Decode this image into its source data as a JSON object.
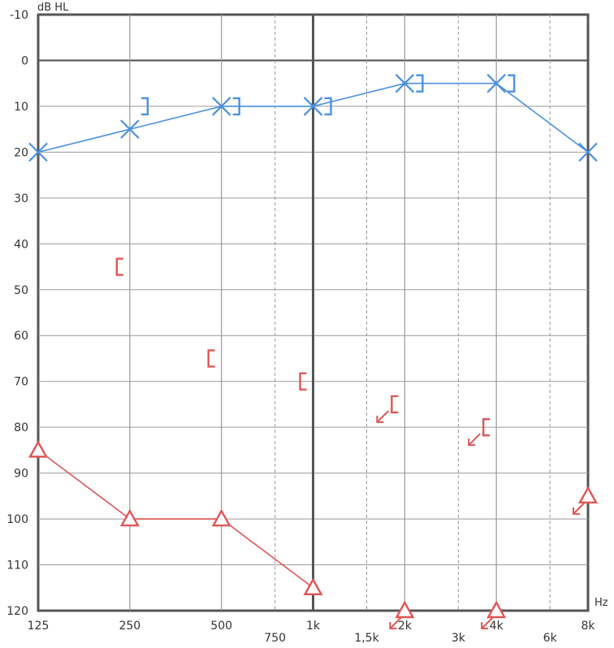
{
  "chart_data": {
    "type": "line",
    "ylabel": "dB HL",
    "xlabel": "Hz",
    "ylim": [
      -10,
      120
    ],
    "y_ticks": [
      "-10",
      "0",
      "10",
      "20",
      "30",
      "40",
      "50",
      "60",
      "70",
      "80",
      "90",
      "100",
      "110",
      "120"
    ],
    "x_ticks_main": [
      {
        "hz": 125,
        "label": "125"
      },
      {
        "hz": 250,
        "label": "250"
      },
      {
        "hz": 500,
        "label": "500"
      },
      {
        "hz": 1000,
        "label": "1k"
      },
      {
        "hz": 2000,
        "label": "2k"
      },
      {
        "hz": 4000,
        "label": "4k"
      },
      {
        "hz": 8000,
        "label": "8k"
      }
    ],
    "x_ticks_inter": [
      {
        "hz": 750,
        "label": "750"
      },
      {
        "hz": 1500,
        "label": "1,5k"
      },
      {
        "hz": 3000,
        "label": "3k"
      },
      {
        "hz": 6000,
        "label": "6k"
      }
    ],
    "colors": {
      "blue": "#4a90e2",
      "red": "#e05555",
      "grid": "#999999",
      "axis": "#555555"
    },
    "series": [
      {
        "color": "blue",
        "marker": "X",
        "connected": true,
        "points": [
          {
            "hz": 125,
            "db": 20
          },
          {
            "hz": 250,
            "db": 15
          },
          {
            "hz": 500,
            "db": 10
          },
          {
            "hz": 1000,
            "db": 10
          },
          {
            "hz": 2000,
            "db": 5
          },
          {
            "hz": 4000,
            "db": 5
          },
          {
            "hz": 8000,
            "db": 20
          }
        ]
      },
      {
        "color": "blue",
        "marker": "bracket",
        "connected": false,
        "points": [
          {
            "hz": 250,
            "db": 10,
            "no_response": false
          },
          {
            "hz": 500,
            "db": 10,
            "no_response": false
          },
          {
            "hz": 1000,
            "db": 10,
            "no_response": false
          },
          {
            "hz": 2000,
            "db": 5,
            "no_response": false
          },
          {
            "hz": 4000,
            "db": 5,
            "no_response": false
          }
        ]
      },
      {
        "color": "red",
        "marker": "triangle",
        "connected": true,
        "points": [
          {
            "hz": 125,
            "db": 85,
            "no_response": false
          },
          {
            "hz": 250,
            "db": 100,
            "no_response": false
          },
          {
            "hz": 500,
            "db": 100,
            "no_response": false
          },
          {
            "hz": 1000,
            "db": 115,
            "no_response": false
          },
          {
            "hz": 2000,
            "db": 120,
            "no_response": true
          },
          {
            "hz": 4000,
            "db": 120,
            "no_response": true
          },
          {
            "hz": 8000,
            "db": 95,
            "no_response": true
          }
        ]
      },
      {
        "color": "red",
        "marker": "bracket",
        "connected": false,
        "points": [
          {
            "hz": 250,
            "db": 45,
            "no_response": false
          },
          {
            "hz": 500,
            "db": 65,
            "no_response": false
          },
          {
            "hz": 1000,
            "db": 70,
            "no_response": false
          },
          {
            "hz": 2000,
            "db": 75,
            "no_response": true
          },
          {
            "hz": 4000,
            "db": 80,
            "no_response": true
          }
        ]
      }
    ]
  }
}
